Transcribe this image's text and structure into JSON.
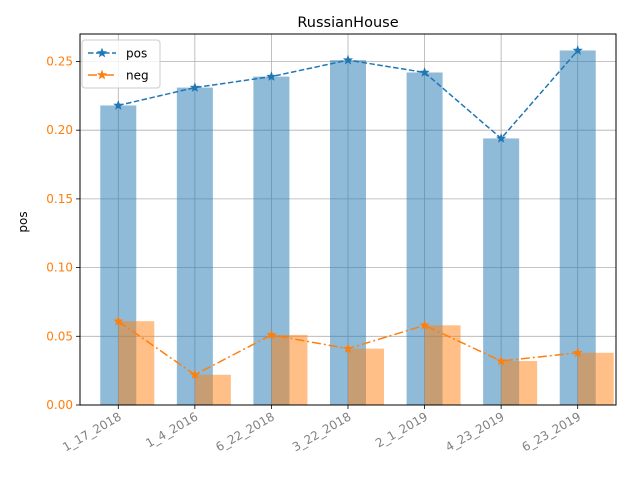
{
  "chart_data": {
    "type": "bar",
    "title": "RussianHouse",
    "xlabel": "",
    "ylabel": "pos",
    "ylim": [
      0,
      0.27
    ],
    "grid": true,
    "legend_position": "top-left",
    "categories": [
      "1_17_2018",
      "1_4_2016",
      "6_22_2018",
      "3_22_2018",
      "2_1_2019",
      "4_23_2019",
      "6_23_2019"
    ],
    "yticks": [
      0.0,
      0.05,
      0.1,
      0.15,
      0.2,
      0.25
    ],
    "ytick_labels": [
      "0.00",
      "0.05",
      "0.10",
      "0.15",
      "0.20",
      "0.25"
    ],
    "series": [
      {
        "name": "pos",
        "values": [
          0.218,
          0.231,
          0.239,
          0.251,
          0.242,
          0.194,
          0.258
        ],
        "color": "#1f77b4",
        "line_style": "dashed",
        "marker": "star"
      },
      {
        "name": "neg",
        "values": [
          0.061,
          0.022,
          0.051,
          0.041,
          0.058,
          0.032,
          0.038
        ],
        "color": "#ff7f0e",
        "line_style": "dashdot",
        "marker": "star"
      }
    ],
    "tick_label_color": "#ff7f0e",
    "xtick_label_color": "#808080"
  }
}
